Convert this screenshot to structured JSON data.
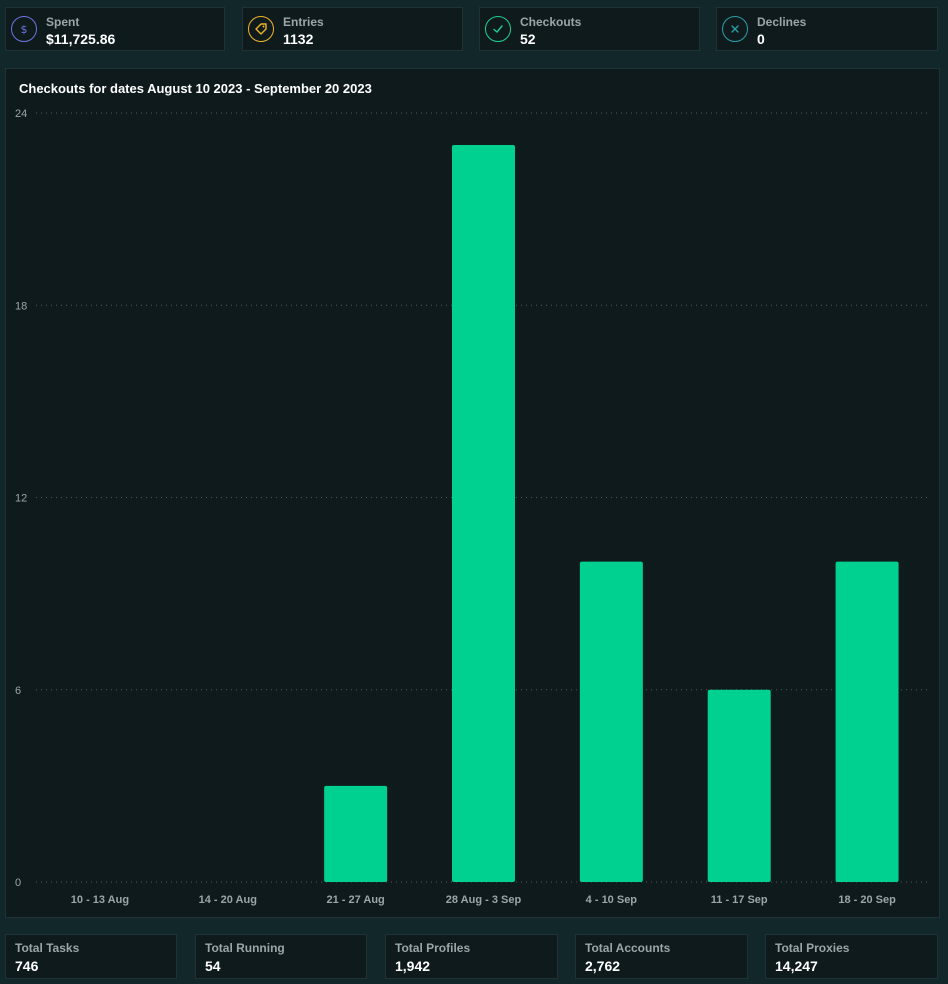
{
  "stats": [
    {
      "label": "Spent",
      "value": "$11,725.86",
      "icon": "dollar-icon",
      "color": "#6b74e0"
    },
    {
      "label": "Entries",
      "value": "1132",
      "icon": "tag-icon",
      "color": "#f0b429"
    },
    {
      "label": "Checkouts",
      "value": "52",
      "icon": "check-icon",
      "color": "#1ecf8f"
    },
    {
      "label": "Declines",
      "value": "0",
      "icon": "x-icon",
      "color": "#2a9fa8"
    }
  ],
  "chart_data": {
    "type": "bar",
    "title": "Checkouts for dates August 10 2023 - September 20 2023",
    "categories": [
      "10 - 13 Aug",
      "14 - 20 Aug",
      "21 - 27 Aug",
      "28 Aug - 3 Sep",
      "4 - 10 Sep",
      "11 - 17 Sep",
      "18 - 20 Sep"
    ],
    "values": [
      0,
      0,
      3,
      23,
      10,
      6,
      10
    ],
    "ylim": [
      0,
      24
    ],
    "yticks": [
      0,
      6,
      12,
      18,
      24
    ],
    "bar_color": "#00d090",
    "grid": true
  },
  "totals": [
    {
      "label": "Total Tasks",
      "value": "746"
    },
    {
      "label": "Total Running",
      "value": "54"
    },
    {
      "label": "Total Profiles",
      "value": "1,942"
    },
    {
      "label": "Total Accounts",
      "value": "2,762"
    },
    {
      "label": "Total Proxies",
      "value": "14,247"
    }
  ]
}
